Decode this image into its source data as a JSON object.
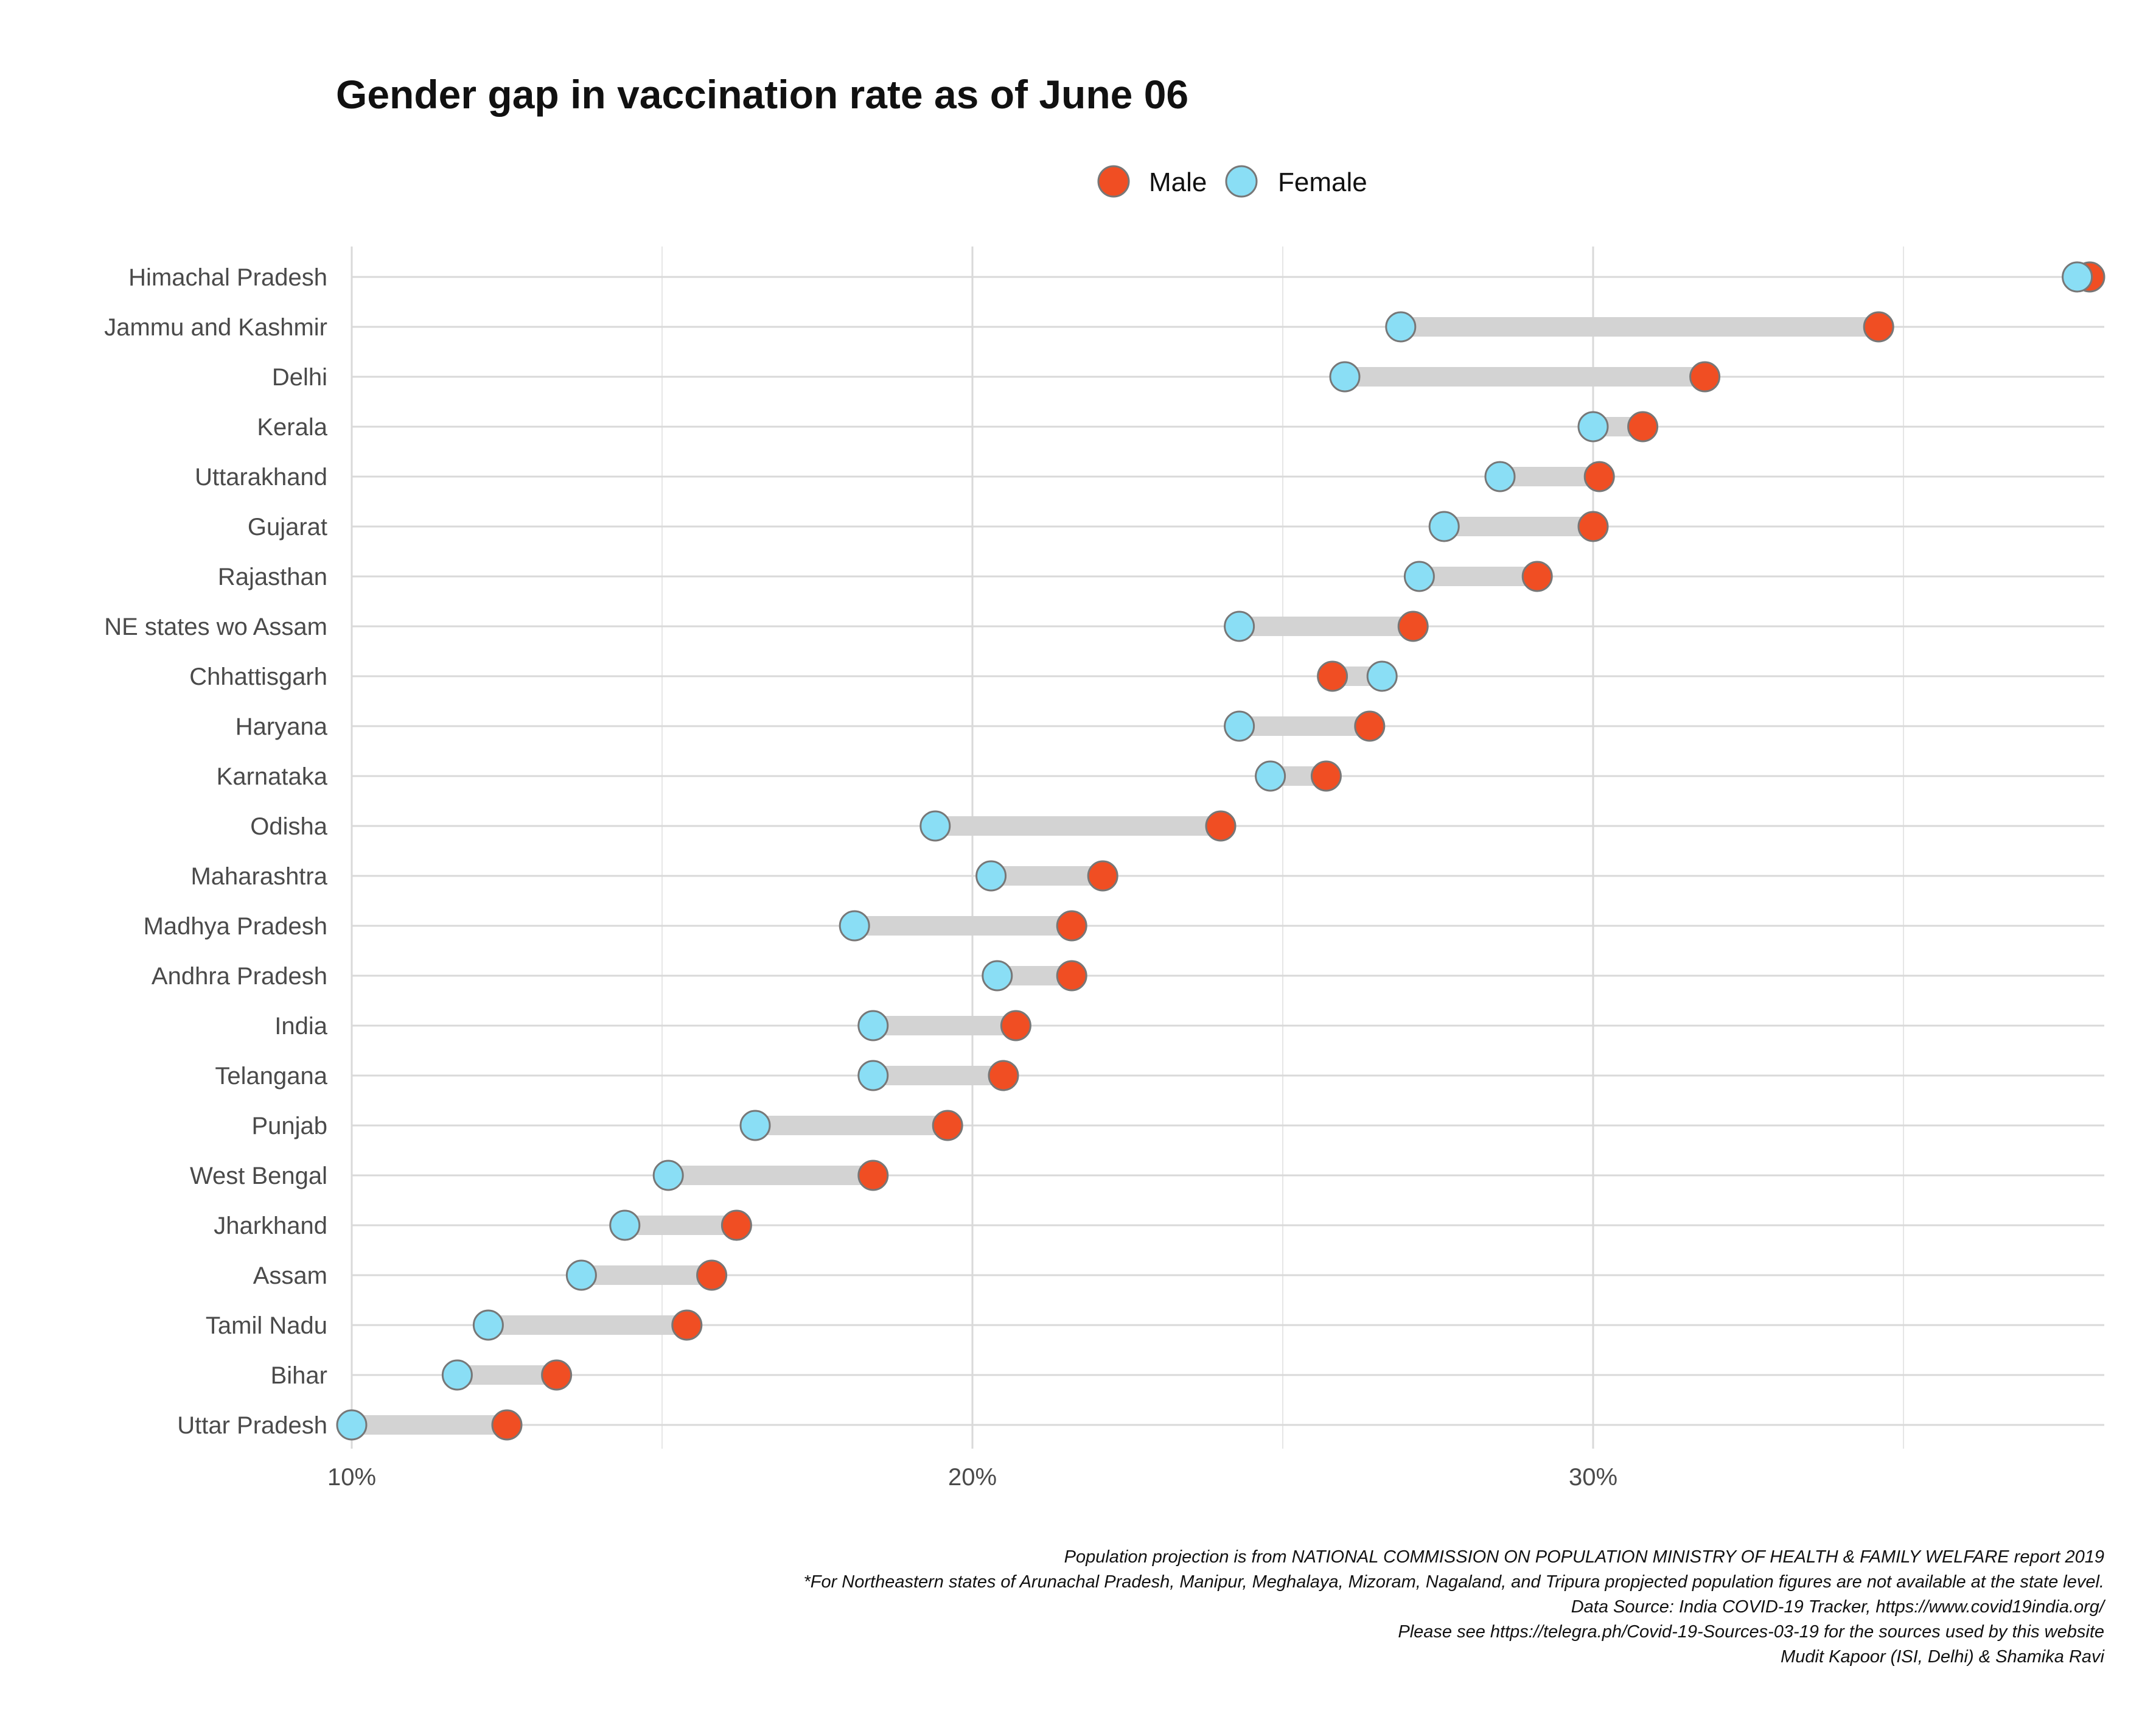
{
  "colors": {
    "male": "#F04E23",
    "female": "#8ADEF5",
    "gap_bar": "#D3D3D3"
  },
  "chart_data": {
    "type": "dumbbell",
    "title": "Gender gap in vaccination rate as of June 06",
    "xlabel": "",
    "ylabel": "",
    "xlim": [
      10,
      38.2
    ],
    "x_ticks": [
      10,
      20,
      30
    ],
    "x_tick_labels": [
      "10%",
      "20%",
      "30%"
    ],
    "grid": true,
    "legend_position": "top-center",
    "legend": [
      {
        "name": "Male",
        "color": "#F04E23"
      },
      {
        "name": "Female",
        "color": "#8ADEF5"
      }
    ],
    "categories": [
      "Himachal Pradesh",
      "Jammu and Kashmir",
      "Delhi",
      "Kerala",
      "Uttarakhand",
      "Gujarat",
      "Rajasthan",
      "NE states wo Assam",
      "Chhattisgarh",
      "Haryana",
      "Karnataka",
      "Odisha",
      "Maharashtra",
      "Madhya Pradesh",
      "Andhra Pradesh",
      "India",
      "Telangana",
      "Punjab",
      "West Bengal",
      "Jharkhand",
      "Assam",
      "Tamil Nadu",
      "Bihar",
      "Uttar Pradesh"
    ],
    "series": [
      {
        "name": "Male",
        "values": [
          38.0,
          34.6,
          31.8,
          30.8,
          30.1,
          30.0,
          29.1,
          27.1,
          25.8,
          26.4,
          25.7,
          24.0,
          22.1,
          21.6,
          21.6,
          20.7,
          20.5,
          19.6,
          18.4,
          16.2,
          15.8,
          15.4,
          13.3,
          12.5
        ]
      },
      {
        "name": "Female",
        "values": [
          37.8,
          26.9,
          26.0,
          30.0,
          28.5,
          27.6,
          27.2,
          24.3,
          26.6,
          24.3,
          24.8,
          19.4,
          20.3,
          18.1,
          20.4,
          18.4,
          18.4,
          16.5,
          15.1,
          14.4,
          13.7,
          12.2,
          11.7,
          10.0
        ]
      }
    ]
  },
  "notes": [
    "Population projection is from NATIONAL COMMISSION ON POPULATION MINISTRY OF HEALTH & FAMILY WELFARE report 2019",
    "*For Northeastern states of Arunachal Pradesh, Manipur, Meghalaya, Mizoram, Nagaland, and Tripura propjected population figures are not available at the state level.",
    "Data Source: India COVID-19 Tracker, https://www.covid19india.org/",
    "Please see https://telegra.ph/Covid-19-Sources-03-19 for the sources used by this website",
    "Mudit Kapoor (ISI, Delhi) & Shamika Ravi"
  ]
}
